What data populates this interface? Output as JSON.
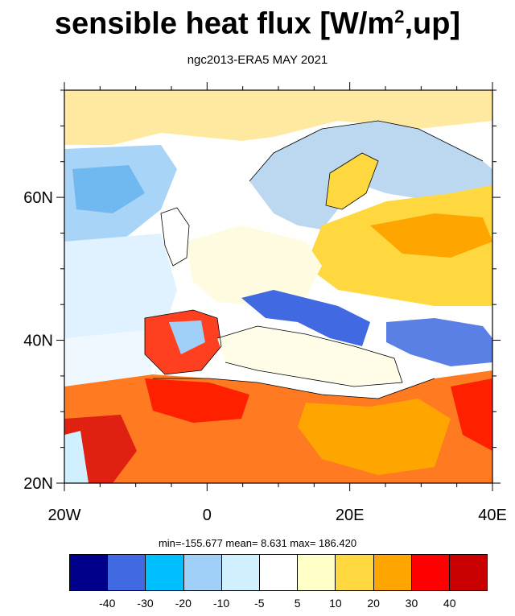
{
  "title": {
    "main": "sensible heat flux [W/m",
    "sup": "2",
    "tail": ",up]"
  },
  "subtitle": "ngc2013-ERA5  MAY 2021",
  "map": {
    "lon_range": [
      -20,
      40
    ],
    "lat_range": [
      20,
      75
    ],
    "x_ticks": [
      "20W",
      "0",
      "20E",
      "40E"
    ],
    "y_ticks": [
      "20N",
      "40N",
      "60N"
    ]
  },
  "stats": "min=-155.677  mean=   8.631  max= 186.420",
  "colorbar": {
    "colors": [
      "#00008b",
      "#4169e1",
      "#00bfff",
      "#a0d0f8",
      "#d0f0ff",
      "#ffffff",
      "#ffffc8",
      "#ffd840",
      "#ffa500",
      "#ff0000",
      "#c80000"
    ],
    "labels": [
      "-40",
      "-30",
      "-20",
      "-10",
      "-5",
      "5",
      "10",
      "20",
      "30",
      "40"
    ]
  }
}
